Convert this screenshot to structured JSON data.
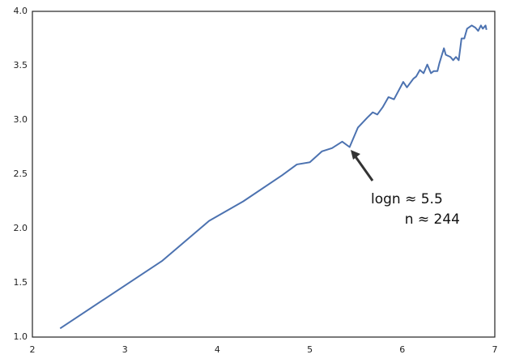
{
  "chart_data": {
    "type": "line",
    "x": [
      2.3,
      3.4,
      3.91,
      4.28,
      4.7,
      4.86,
      5.0,
      5.13,
      5.24,
      5.35,
      5.43,
      5.52,
      5.62,
      5.68,
      5.73,
      5.79,
      5.85,
      5.91,
      6.01,
      6.05,
      6.12,
      6.15,
      6.19,
      6.23,
      6.27,
      6.31,
      6.34,
      6.38,
      6.4,
      6.45,
      6.47,
      6.52,
      6.55,
      6.58,
      6.61,
      6.64,
      6.67,
      6.7,
      6.75,
      6.79,
      6.82,
      6.85,
      6.87,
      6.9,
      6.91
    ],
    "values": [
      1.08,
      1.7,
      2.07,
      2.25,
      2.49,
      2.59,
      2.61,
      2.71,
      2.74,
      2.8,
      2.75,
      2.93,
      3.02,
      3.07,
      3.05,
      3.12,
      3.21,
      3.19,
      3.35,
      3.3,
      3.38,
      3.4,
      3.46,
      3.43,
      3.51,
      3.43,
      3.45,
      3.45,
      3.52,
      3.66,
      3.6,
      3.58,
      3.55,
      3.58,
      3.55,
      3.75,
      3.75,
      3.84,
      3.87,
      3.85,
      3.82,
      3.87,
      3.84,
      3.87,
      3.83
    ],
    "color": "#4c72b0",
    "xlim": [
      2,
      7
    ],
    "xticks": [
      2,
      3,
      4,
      5,
      6,
      7
    ],
    "ylim": [
      1.0,
      4.0
    ],
    "yticks": [
      {
        "value": 1.0,
        "label": "1.0"
      },
      {
        "value": 1.5,
        "label": "1.5"
      },
      {
        "value": 2.0,
        "label": "2.0"
      },
      {
        "value": 2.5,
        "label": "2.5"
      },
      {
        "value": 3.0,
        "label": "3.0"
      },
      {
        "value": 3.5,
        "label": "3.5"
      },
      {
        "value": 4.0,
        "label": "4.0"
      }
    ],
    "annotations": [
      "logn ≈ 5.5",
      "n ≈ 244"
    ]
  }
}
